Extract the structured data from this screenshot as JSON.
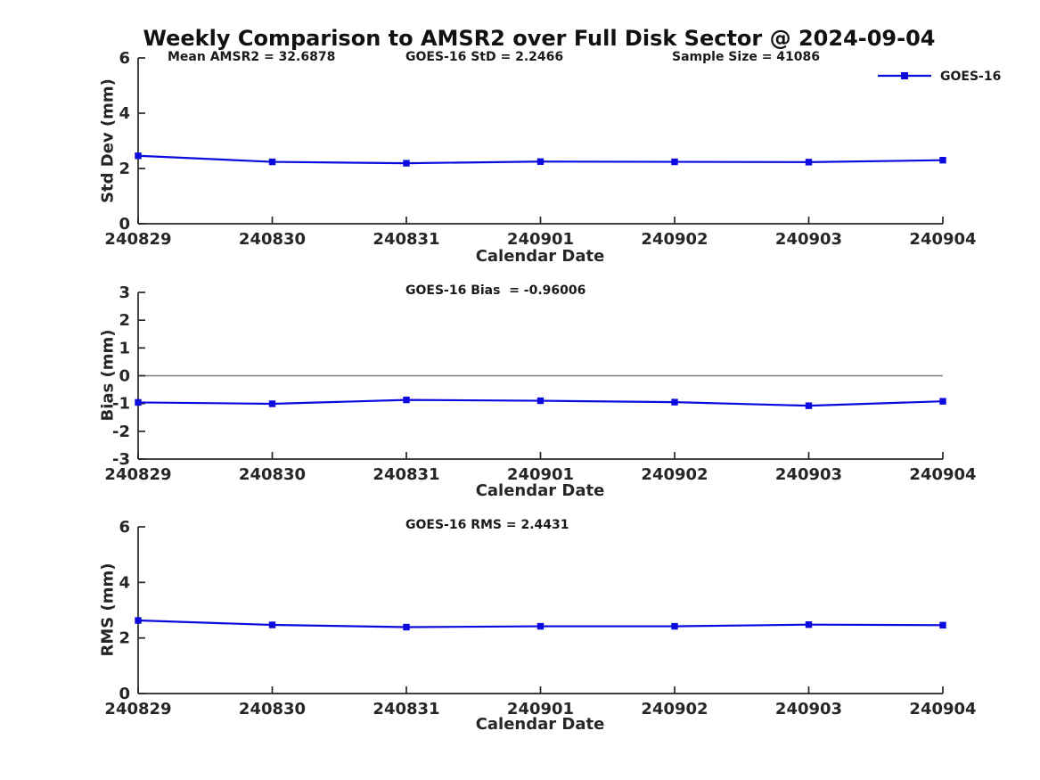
{
  "page": {
    "title": "Weekly Comparison to AMSR2 over Full Disk Sector @ 2024-09-04"
  },
  "legend": {
    "label": "GOES-16",
    "position": "top-right"
  },
  "colors": {
    "series": "#0b0be0",
    "zero_line": "#7f7f7f",
    "axis": "#262626",
    "text": "#1a1a1a"
  },
  "chart_data": [
    {
      "type": "line",
      "name": "std-dev",
      "title": "",
      "ylabel": "Std Dev (mm)",
      "xlabel": "Calendar Date",
      "categories": [
        "240829",
        "240830",
        "240831",
        "240901",
        "240902",
        "240903",
        "240904"
      ],
      "series": [
        {
          "name": "GOES-16",
          "marker": "square",
          "values": [
            2.46,
            2.24,
            2.19,
            2.25,
            2.24,
            2.23,
            2.3
          ]
        }
      ],
      "ylim": [
        0,
        6
      ],
      "yticks": [
        0,
        2,
        4,
        6
      ],
      "grid": false,
      "zero_line": false,
      "show_legend": true,
      "annotations": [
        "Mean AMSR2 = 32.6878",
        "GOES-16 StD = 2.2466",
        "Sample Size = 41086"
      ]
    },
    {
      "type": "line",
      "name": "bias",
      "title": "",
      "ylabel": "Bias (mm)",
      "xlabel": "Calendar Date",
      "categories": [
        "240829",
        "240830",
        "240831",
        "240901",
        "240902",
        "240903",
        "240904"
      ],
      "series": [
        {
          "name": "GOES-16",
          "marker": "square",
          "values": [
            -0.96,
            -1.01,
            -0.87,
            -0.9,
            -0.95,
            -1.08,
            -0.92
          ]
        }
      ],
      "ylim": [
        -3,
        3
      ],
      "yticks": [
        -3,
        -2,
        -1,
        0,
        1,
        2,
        3
      ],
      "grid": false,
      "zero_line": true,
      "show_legend": false,
      "annotations": [
        "GOES-16 Bias  = -0.96006"
      ]
    },
    {
      "type": "line",
      "name": "rms",
      "title": "",
      "ylabel": "RMS (mm)",
      "xlabel": "Calendar Date",
      "categories": [
        "240829",
        "240830",
        "240831",
        "240901",
        "240902",
        "240903",
        "240904"
      ],
      "series": [
        {
          "name": "GOES-16",
          "marker": "square",
          "values": [
            2.63,
            2.47,
            2.39,
            2.42,
            2.42,
            2.48,
            2.46
          ]
        }
      ],
      "ylim": [
        0,
        6
      ],
      "yticks": [
        0,
        2,
        4,
        6
      ],
      "grid": false,
      "zero_line": false,
      "show_legend": false,
      "annotations": [
        "GOES-16 RMS = 2.4431"
      ]
    }
  ]
}
